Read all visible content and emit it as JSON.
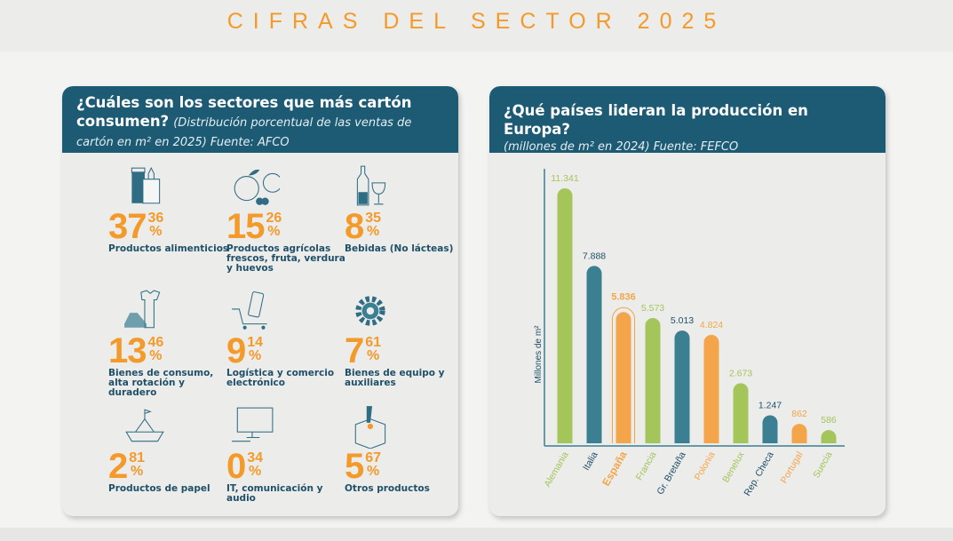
{
  "title": "CIFRAS DEL SECTOR 2025",
  "left": {
    "question": "¿Cuáles son los sectores que más cartón consumen?",
    "subtitle": "(Distribución porcentual de las ventas de cartón en m² en 2025) Fuente: AFCO",
    "items": [
      {
        "int": "37",
        "dec": "36",
        "unit": "%",
        "label": "Productos alimenticios",
        "icon": "grocery-bag-icon"
      },
      {
        "int": "15",
        "dec": "26",
        "unit": "%",
        "label": "Productos agrícolas frescos, fruta, verdura y huevos",
        "icon": "fruit-icon"
      },
      {
        "int": "8",
        "dec": "35",
        "unit": "%",
        "label": "Bebidas (No lácteas)",
        "icon": "wine-icon"
      },
      {
        "int": "13",
        "dec": "46",
        "unit": "%",
        "label": "Bienes de consumo, alta rotación y duradero",
        "icon": "shoe-shirt-icon"
      },
      {
        "int": "9",
        "dec": "14",
        "unit": "%",
        "label": "Logística y comercio electrónico",
        "icon": "cart-phone-icon"
      },
      {
        "int": "7",
        "dec": "61",
        "unit": "%",
        "label": "Bienes de equipo y auxiliares",
        "icon": "gear-icon"
      },
      {
        "int": "2",
        "dec": "81",
        "unit": "%",
        "label": "Productos de papel",
        "icon": "paper-boat-icon"
      },
      {
        "int": "0",
        "dec": "34",
        "unit": "%",
        "label": "IT, comunicación y audio",
        "icon": "computer-icon"
      },
      {
        "int": "5",
        "dec": "67",
        "unit": "%",
        "label": "Otros productos",
        "icon": "box-icon"
      }
    ]
  },
  "right": {
    "question": "¿Qué países lideran la producción en Europa?",
    "subtitle": "(millones de m² en 2024) Fuente: FEFCO"
  },
  "chart_data": {
    "type": "bar",
    "ylabel": "Millones de m²",
    "categories": [
      "Alemania",
      "Italia",
      "España",
      "Francia",
      "Gr. Bretaña",
      "Polonia",
      "Benelux",
      "Rep. Checa",
      "Portugal",
      "Suecia"
    ],
    "values": [
      11341,
      7888,
      5836,
      5573,
      5013,
      4824,
      2673,
      1247,
      862,
      586
    ],
    "value_labels": [
      "11.341",
      "7.888",
      "5.836",
      "5.573",
      "5.013",
      "4.824",
      "2.673",
      "1.247",
      "862",
      "586"
    ],
    "colors": [
      "#a3c55a",
      "#3b7f93",
      "#f4a54a",
      "#a3c55a",
      "#3b7f93",
      "#f4a54a",
      "#a3c55a",
      "#3b7f93",
      "#f4a54a",
      "#a3c55a"
    ],
    "highlight": "España",
    "ylim": [
      0,
      11341
    ],
    "grid": false
  }
}
